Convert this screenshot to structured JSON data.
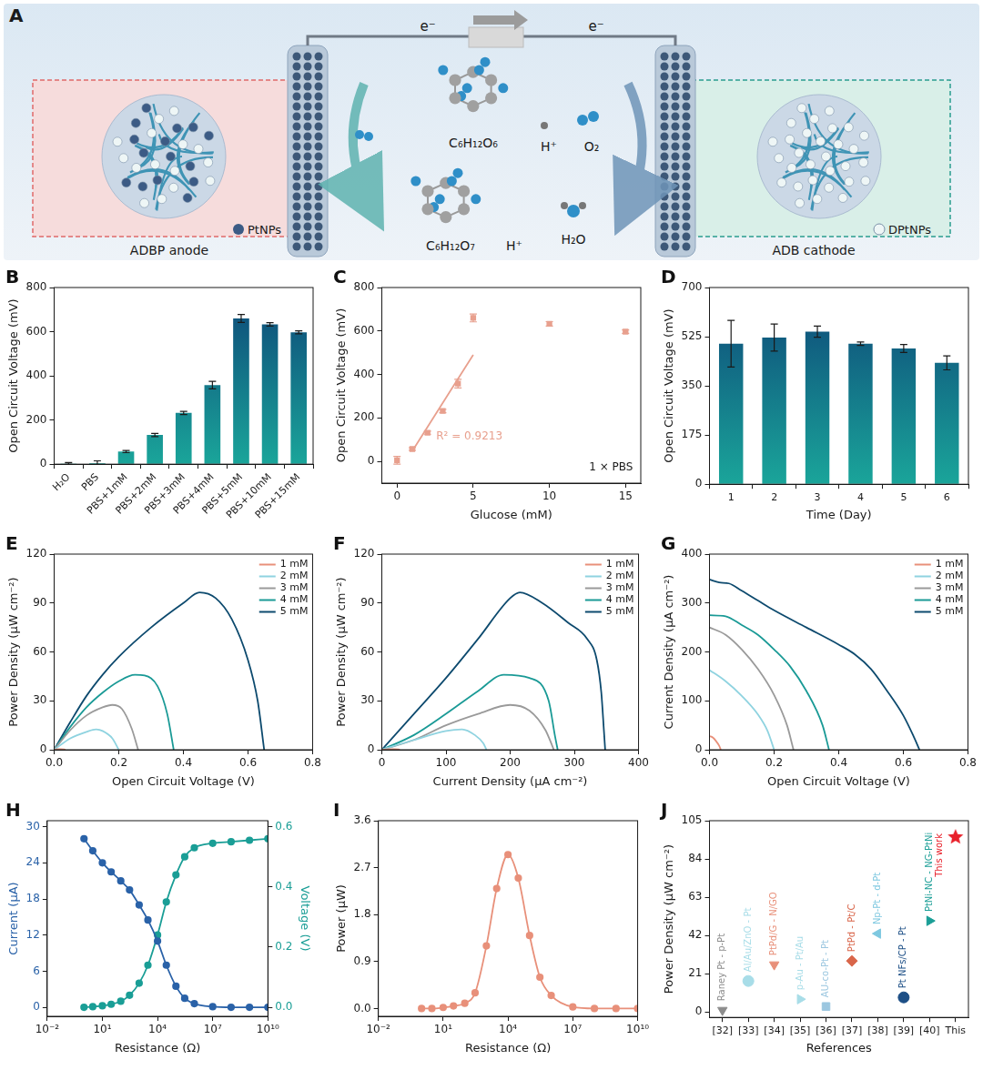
{
  "diagram": {
    "panel": "A",
    "wire_labels": [
      "e⁻",
      "e⁻"
    ],
    "anode": {
      "title": "ADBP anode",
      "particle": "PtNPs",
      "reactant": "C₆H₁₂O₆",
      "product": "C₆H₁₂O₇",
      "product_ion": "H⁺"
    },
    "cathode": {
      "title": "ADB cathode",
      "particle": "DPtNPs",
      "reactants": [
        "H⁺",
        "O₂"
      ],
      "product": "H₂O"
    }
  },
  "chart_data": [
    {
      "panel": "B",
      "type": "bar",
      "categories": [
        "H₂O",
        "PBS",
        "PBS+1mM",
        "PBS+2mM",
        "PBS+3mM",
        "PBS+4mM",
        "PBS+5mM",
        "PBS+10mM",
        "PBS+15mM"
      ],
      "values": [
        3,
        5,
        57,
        132,
        232,
        358,
        660,
        633,
        597
      ],
      "errors": [
        4,
        10,
        5,
        7,
        7,
        17,
        18,
        8,
        7
      ],
      "color": "#0d4577",
      "y_label": "Open Circuit Voltage (mV)",
      "ylim": [
        0,
        800
      ],
      "yticks": [
        0,
        200,
        400,
        600,
        800
      ],
      "grid": false
    },
    {
      "panel": "C",
      "type": "scatter",
      "series": [
        {
          "type": "scatter",
          "marker": "square",
          "color": "#e8a08e",
          "x": [
            0,
            1,
            2,
            3,
            4,
            5,
            10,
            15
          ],
          "values": [
            5,
            57,
            132,
            232,
            358,
            660,
            633,
            597
          ],
          "errors": [
            18,
            6,
            7,
            8,
            20,
            18,
            10,
            8
          ]
        },
        {
          "type": "line",
          "color": "#e8a08e",
          "x": [
            1,
            5
          ],
          "values": [
            48,
            490
          ]
        }
      ],
      "x_label": "Glucose (mM)",
      "y_label": "Open Circuit Voltage (mV)",
      "annotations": [
        "R² = 0.9213",
        "1 × PBS"
      ],
      "xlim": [
        -1,
        16
      ],
      "xticks": [
        0,
        5,
        10,
        15
      ],
      "ylim": [
        -100,
        800
      ],
      "yticks": [
        0,
        200,
        400,
        600,
        800
      ],
      "grid": false
    },
    {
      "panel": "D",
      "type": "bar",
      "categories": [
        "1",
        "2",
        "3",
        "4",
        "5",
        "6"
      ],
      "values": [
        500,
        522,
        543,
        500,
        483,
        432
      ],
      "errors": [
        83,
        48,
        20,
        6,
        14,
        25
      ],
      "color": "#0d4577",
      "x_label": "Time (Day)",
      "y_label": "Open Circuit Voltage (mV)",
      "ylim": [
        0,
        700
      ],
      "yticks": [
        0,
        175,
        350,
        525,
        700
      ],
      "grid": false
    },
    {
      "panel": "E",
      "type": "line",
      "series": [
        {
          "name": "1 mM",
          "color": "#e8907a",
          "x": [
            0,
            0.01,
            0.02,
            0.03,
            0.035
          ],
          "values": [
            0,
            0.3,
            0.4,
            0.2,
            0
          ]
        },
        {
          "name": "2 mM",
          "color": "#8fd3e0",
          "x": [
            0,
            0.05,
            0.1,
            0.13,
            0.15,
            0.18,
            0.2
          ],
          "values": [
            0,
            7,
            11,
            12.5,
            11.5,
            7,
            0
          ]
        },
        {
          "name": "3 mM",
          "color": "#9a9a9a",
          "x": [
            0,
            0.05,
            0.1,
            0.15,
            0.18,
            0.21,
            0.24,
            0.26
          ],
          "values": [
            0,
            12,
            21,
            26,
            27.5,
            25,
            13,
            0
          ]
        },
        {
          "name": "4 mM",
          "color": "#1a9a96",
          "x": [
            0,
            0.05,
            0.1,
            0.15,
            0.2,
            0.25,
            0.28,
            0.32,
            0.35,
            0.37
          ],
          "values": [
            0,
            14,
            26,
            35,
            42,
            46,
            45.5,
            39,
            22,
            0
          ]
        },
        {
          "name": "5 mM",
          "color": "#0d4a6e",
          "x": [
            0,
            0.05,
            0.1,
            0.15,
            0.2,
            0.3,
            0.4,
            0.45,
            0.5,
            0.55,
            0.6,
            0.63,
            0.65
          ],
          "values": [
            0,
            17,
            33,
            46,
            57,
            75,
            90,
            96.5,
            93,
            80,
            55,
            30,
            0
          ]
        }
      ],
      "x_label": "Open Circuit Voltage (V)",
      "y_label": "Power Density (μW cm⁻²)",
      "xlim": [
        0,
        0.8
      ],
      "xticks": [
        {
          "value": 0,
          "label": "0.0"
        },
        0.2,
        0.4,
        0.6,
        0.8
      ],
      "ylim": [
        0,
        120
      ],
      "yticks": [
        0,
        30,
        60,
        90,
        120
      ],
      "grid": false,
      "legend": "upper right"
    },
    {
      "panel": "F",
      "type": "line",
      "series": [
        {
          "name": "1 mM",
          "color": "#e8907a",
          "x": [
            0,
            10,
            20,
            26,
            28
          ],
          "values": [
            0,
            0.3,
            0.4,
            0.2,
            0
          ]
        },
        {
          "name": "2 mM",
          "color": "#8fd3e0",
          "x": [
            0,
            50,
            100,
            125,
            145,
            158,
            163
          ],
          "values": [
            0,
            6,
            11.5,
            12.5,
            9,
            4,
            0
          ]
        },
        {
          "name": "3 mM",
          "color": "#9a9a9a",
          "x": [
            0,
            50,
            100,
            150,
            200,
            230,
            255,
            268
          ],
          "values": [
            0,
            6,
            15,
            22,
            27.5,
            24,
            12,
            0
          ]
        },
        {
          "name": "4 mM",
          "color": "#1a9a96",
          "x": [
            0,
            50,
            100,
            150,
            190,
            230,
            260,
            270,
            274
          ],
          "values": [
            0,
            9,
            22,
            36,
            46,
            44,
            30,
            8,
            0
          ]
        },
        {
          "name": "5 mM",
          "color": "#0d4a6e",
          "x": [
            0,
            50,
            100,
            150,
            200,
            215,
            250,
            290,
            320,
            335,
            342,
            346,
            348
          ],
          "values": [
            0,
            22,
            44,
            68,
            93,
            96.5,
            90,
            78,
            68,
            55,
            35,
            12,
            0
          ]
        }
      ],
      "x_label": "Current Density (μA cm⁻²)",
      "y_label": "Power Density (μW cm⁻²)",
      "xlim": [
        0,
        400
      ],
      "xticks": [
        0,
        100,
        200,
        300,
        400
      ],
      "ylim": [
        0,
        120
      ],
      "yticks": [
        0,
        30,
        60,
        90,
        120
      ],
      "grid": false,
      "legend": "upper right"
    },
    {
      "panel": "G",
      "type": "line",
      "series": [
        {
          "name": "1 mM",
          "color": "#e8907a",
          "x": [
            0,
            0.01,
            0.02,
            0.03,
            0.035
          ],
          "values": [
            28,
            25,
            18,
            8,
            0
          ]
        },
        {
          "name": "2 mM",
          "color": "#8fd3e0",
          "x": [
            0,
            0.05,
            0.1,
            0.15,
            0.18,
            0.2
          ],
          "values": [
            163,
            140,
            110,
            72,
            38,
            0
          ]
        },
        {
          "name": "3 mM",
          "color": "#9a9a9a",
          "x": [
            0,
            0.05,
            0.1,
            0.15,
            0.2,
            0.24,
            0.26
          ],
          "values": [
            250,
            235,
            205,
            165,
            112,
            50,
            0
          ]
        },
        {
          "name": "4 mM",
          "color": "#1a9a96",
          "x": [
            0,
            0.05,
            0.1,
            0.15,
            0.2,
            0.25,
            0.3,
            0.35,
            0.37
          ],
          "values": [
            275,
            273,
            255,
            235,
            205,
            170,
            120,
            50,
            0
          ]
        },
        {
          "name": "5 mM",
          "color": "#0d4a6e",
          "x": [
            0,
            0.03,
            0.06,
            0.1,
            0.15,
            0.2,
            0.3,
            0.4,
            0.45,
            0.5,
            0.55,
            0.6,
            0.63,
            0.65
          ],
          "values": [
            348,
            342,
            340,
            325,
            305,
            285,
            250,
            215,
            195,
            165,
            120,
            70,
            30,
            0
          ]
        }
      ],
      "x_label": "Open Circuit Voltage (V)",
      "y_label": "Current Density (μA cm⁻²)",
      "xlim": [
        0,
        0.8
      ],
      "xticks": [
        {
          "value": 0,
          "label": "0.0"
        },
        0.2,
        0.4,
        0.6,
        0.8
      ],
      "ylim": [
        0,
        400
      ],
      "yticks": [
        0,
        100,
        200,
        300,
        400
      ],
      "grid": false,
      "legend": "upper right"
    },
    {
      "panel": "H",
      "type": "line",
      "log": "x",
      "series": [
        {
          "type": "line",
          "marker": "circle",
          "color": "#2a62a8",
          "x": [
            1,
            3,
            10,
            30,
            100,
            300,
            1000,
            3000,
            10000,
            30000,
            100000,
            300000,
            1000000,
            10000000,
            100000000,
            1000000000,
            10000000000
          ],
          "values": [
            28,
            26,
            24,
            22.5,
            21,
            19.5,
            17,
            14.5,
            11,
            7,
            3.5,
            1.5,
            0.6,
            0.1,
            0,
            0,
            0
          ]
        },
        {
          "type": "line",
          "marker": "circle",
          "color": "#1a9e96",
          "axis": "y2",
          "x": [
            1,
            3,
            10,
            30,
            100,
            300,
            1000,
            3000,
            10000,
            30000,
            100000,
            300000,
            1000000,
            10000000,
            100000000,
            1000000000,
            10000000000
          ],
          "values": [
            0,
            0.002,
            0.005,
            0.01,
            0.02,
            0.04,
            0.08,
            0.14,
            0.24,
            0.35,
            0.44,
            0.5,
            0.53,
            0.545,
            0.55,
            0.555,
            0.56
          ]
        }
      ],
      "x_label": "Resistance (Ω)",
      "y_label": "Current (μA)",
      "y2_label": "Voltage (V)",
      "xlim": [
        0.01,
        10000000000
      ],
      "xticks": [
        {
          "value": 0.01,
          "label": "10⁻²"
        },
        {
          "value": 10,
          "label": "10¹"
        },
        {
          "value": 10000,
          "label": "10⁴"
        },
        {
          "value": 10000000,
          "label": "10⁷"
        },
        {
          "value": 10000000000,
          "label": "10¹⁰"
        }
      ],
      "ylim": [
        -1.5,
        31
      ],
      "yticks": [
        0,
        6,
        12,
        18,
        24,
        30
      ],
      "y2lim": [
        -0.03,
        0.62
      ],
      "y2ticks": [
        {
          "value": 0,
          "label": "0.0"
        },
        0.2,
        0.4,
        0.6
      ],
      "grid": false
    },
    {
      "panel": "I",
      "type": "line",
      "log": "x",
      "series": [
        {
          "type": "line",
          "marker": "circle",
          "color": "#e8907a",
          "x": [
            1,
            3,
            10,
            30,
            100,
            300,
            1000,
            3000,
            10000,
            30000,
            100000,
            300000,
            1000000,
            10000000,
            100000000,
            1000000000,
            10000000000
          ],
          "values": [
            0,
            0,
            0.02,
            0.05,
            0.1,
            0.3,
            1.2,
            2.3,
            2.95,
            2.5,
            1.4,
            0.6,
            0.25,
            0.03,
            0,
            0,
            0
          ]
        }
      ],
      "x_label": "Resistance (Ω)",
      "y_label": "Power (μW)",
      "xlim": [
        0.01,
        10000000000
      ],
      "xticks": [
        {
          "value": 0.01,
          "label": "10⁻²"
        },
        {
          "value": 10,
          "label": "10¹"
        },
        {
          "value": 10000,
          "label": "10⁴"
        },
        {
          "value": 10000000,
          "label": "10⁷"
        },
        {
          "value": 10000000000,
          "label": "10¹⁰"
        }
      ],
      "ylim": [
        -0.15,
        3.6
      ],
      "yticks": [
        {
          "value": 0,
          "label": "0.0"
        },
        0.9,
        1.8,
        2.7,
        3.6
      ],
      "grid": false
    },
    {
      "panel": "J",
      "type": "scatter",
      "categories": [
        "[32]",
        "[33]",
        "[34]",
        "[35]",
        "[36]",
        "[37]",
        "[38]",
        "[39]",
        "[40]",
        "This"
      ],
      "series": [
        {
          "name": "Raney Pt - p-Pt",
          "color": "#8c8c8c",
          "marker": "triangle_down",
          "values": [
            1,
            null,
            null,
            null,
            null,
            null,
            null,
            null,
            null,
            null
          ]
        },
        {
          "name": "Al/Au/ZnO - Pt",
          "color": "#a8dde8",
          "marker": "circle",
          "values": [
            null,
            17,
            null,
            null,
            null,
            null,
            null,
            null,
            null,
            null
          ]
        },
        {
          "name": "PtPd/G - N/GO",
          "color": "#e8907a",
          "marker": "triangle_down",
          "values": [
            null,
            null,
            26,
            null,
            null,
            null,
            null,
            null,
            null,
            null
          ]
        },
        {
          "name": "p-Au - Pt/Au",
          "color": "#a8dde8",
          "marker": "triangle_right",
          "values": [
            null,
            null,
            null,
            7,
            null,
            null,
            null,
            null,
            null,
            null
          ]
        },
        {
          "name": "AU-co-Pt - Pt",
          "color": "#9cc7e0",
          "marker": "square",
          "values": [
            null,
            null,
            null,
            null,
            3,
            null,
            null,
            null,
            null,
            null
          ]
        },
        {
          "name": "PtPd - Pt/C",
          "color": "#d9664a",
          "marker": "diamond",
          "values": [
            null,
            null,
            null,
            null,
            null,
            28,
            null,
            null,
            null,
            null
          ]
        },
        {
          "name": "Np-Pt - d-Pt",
          "color": "#7ec8e0",
          "marker": "triangle_left",
          "values": [
            null,
            null,
            null,
            null,
            null,
            null,
            43,
            null,
            null,
            null
          ]
        },
        {
          "name": "Pt NFs/CP - Pt",
          "color": "#1d4f86",
          "marker": "circle",
          "values": [
            null,
            null,
            null,
            null,
            null,
            null,
            null,
            8,
            null,
            null
          ]
        },
        {
          "name": "PtNi-NC - NG-PtNi",
          "color": "#1a9e96",
          "marker": "triangle_right",
          "values": [
            null,
            null,
            null,
            null,
            null,
            null,
            null,
            null,
            50,
            null
          ]
        },
        {
          "name": "This work",
          "color": "#e8202a",
          "marker": "star",
          "values": [
            null,
            null,
            null,
            null,
            null,
            null,
            null,
            null,
            null,
            96
          ]
        }
      ],
      "x_label": "References",
      "y_label": "Power Density (μW cm⁻²)",
      "ylim": [
        -3,
        105
      ],
      "yticks": [
        0,
        21,
        42,
        63,
        84,
        105
      ],
      "grid": false
    }
  ]
}
